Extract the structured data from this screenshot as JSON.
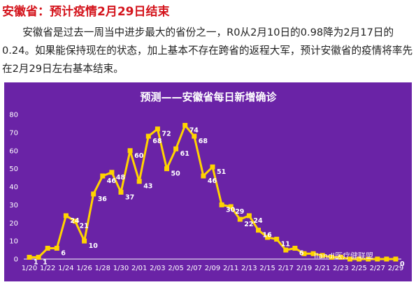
{
  "article": {
    "heading": "安徽省：预计疫情2月29日结束",
    "paragraph": "安徽省是过去一周当中进步最大的省份之一，R0从2月10日的0.98降为2月17日的0.24。如果能保持现在的状态，加上基本不存在跨省的返程大军，预计安徽省的疫情将率先在2月29日左右基本结束。"
  },
  "watermark": "Ilandl医疗健联盟",
  "colors": {
    "background": "#6a23a6",
    "line": "#ffd400",
    "marker": "#ffd400",
    "text": "#ffffff"
  },
  "chart_data": {
    "type": "line",
    "title": "预测——安徽省每日新增确诊",
    "ylim": [
      0,
      80
    ],
    "yticks": [
      0,
      10,
      20,
      30,
      40,
      50,
      60,
      70,
      80
    ],
    "xtick_labels": [
      "1/20",
      "1/22",
      "1/24",
      "1/26",
      "1/28",
      "1/30",
      "2/01",
      "2/03",
      "2/05",
      "2/07",
      "2/09",
      "2/11",
      "2/13",
      "2/15",
      "2/17",
      "2/19",
      "2/21",
      "2/23",
      "2/25",
      "2/27",
      "2/29"
    ],
    "x": [
      "1/20",
      "1/21",
      "1/22",
      "1/23",
      "1/24",
      "1/25",
      "1/26",
      "1/27",
      "1/28",
      "1/29",
      "1/30",
      "1/31",
      "2/01",
      "2/02",
      "2/03",
      "2/04",
      "2/05",
      "2/06",
      "2/07",
      "2/08",
      "2/09",
      "2/10",
      "2/11",
      "2/12",
      "2/13",
      "2/14",
      "2/15",
      "2/16",
      "2/17",
      "2/18",
      "2/19",
      "2/20",
      "2/21",
      "2/22",
      "2/23",
      "2/24",
      "2/25",
      "2/26",
      "2/27",
      "2/28",
      "2/29"
    ],
    "values": [
      1,
      1,
      6,
      6,
      24,
      21,
      10,
      36,
      46,
      48,
      37,
      60,
      43,
      68,
      72,
      50,
      61,
      74,
      68,
      46,
      51,
      30,
      29,
      22,
      24,
      16,
      12,
      11,
      5,
      6,
      3,
      3,
      2,
      1,
      1,
      0,
      0,
      0,
      0,
      0,
      0
    ],
    "labels": [
      "1",
      "1",
      "",
      "6",
      "24",
      "21",
      "10",
      "36",
      "46",
      "48",
      "37",
      "60",
      "43",
      "68",
      "72",
      "50",
      "61",
      "74",
      "68",
      "46",
      "51",
      "30",
      "29",
      "22",
      "24",
      "16",
      "",
      "11",
      "",
      "6",
      "",
      "",
      "",
      "",
      "",
      "",
      "",
      "",
      "",
      "",
      "0"
    ]
  }
}
